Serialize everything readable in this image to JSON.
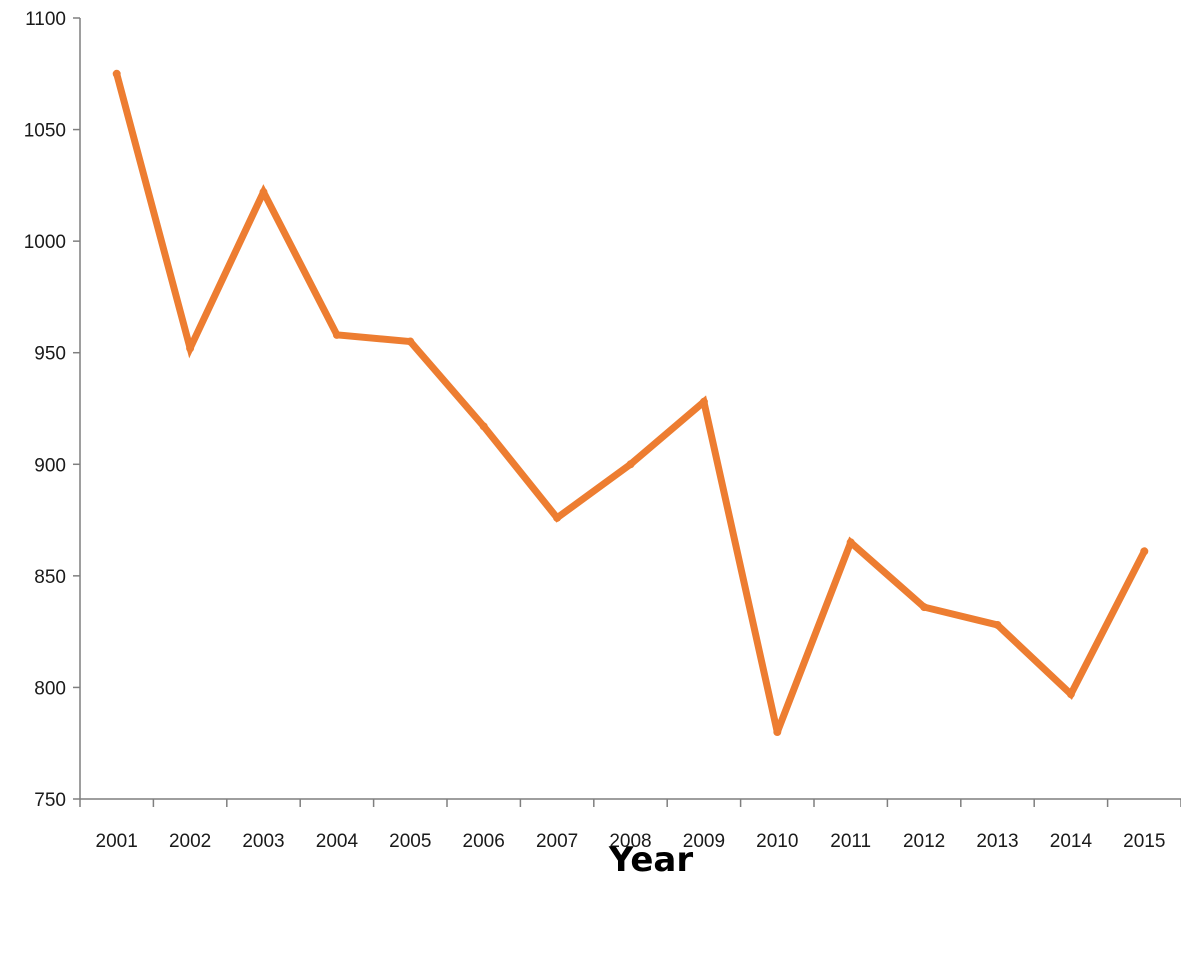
{
  "chart_data": {
    "type": "line",
    "title": "",
    "xlabel": "Year",
    "ylabel": "",
    "categories": [
      "2001",
      "2002",
      "2003",
      "2004",
      "2005",
      "2006",
      "2007",
      "2008",
      "2009",
      "2010",
      "2011",
      "2012",
      "2013",
      "2014",
      "2015"
    ],
    "series": [
      {
        "values": [
          1075,
          952,
          1022,
          958,
          955,
          917,
          876,
          900,
          928,
          780,
          865,
          836,
          828,
          797,
          861
        ],
        "color": "#ED7D31"
      }
    ],
    "ylim": [
      750,
      1100
    ],
    "yticks": [
      750,
      800,
      850,
      900,
      950,
      1000,
      1050,
      1100
    ],
    "grid": false,
    "legend": "none",
    "axis_color": "#7f7f7f"
  }
}
